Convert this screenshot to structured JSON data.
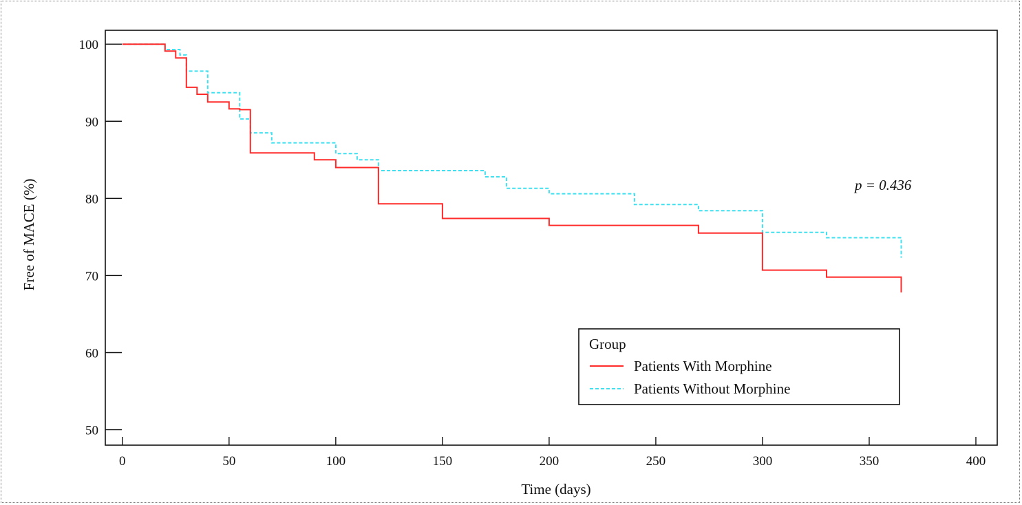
{
  "chart_data": {
    "type": "line",
    "subtype": "kaplan-meier step",
    "xlabel": "Time (days)",
    "ylabel": "Free of MACE (%)",
    "xlim": [
      -8,
      410
    ],
    "ylim": [
      48,
      101.8
    ],
    "x_ticks": [
      0,
      50,
      100,
      150,
      200,
      250,
      300,
      350,
      400
    ],
    "y_ticks": [
      50,
      60,
      70,
      80,
      90,
      100
    ],
    "grid": false,
    "annotation": "p = 0.436",
    "legend": {
      "title": "Group",
      "placement": "bottom-right",
      "entries": [
        "Patients With Morphine",
        "Patients Without Morphine"
      ]
    },
    "series": [
      {
        "name": "Patients With Morphine",
        "color": "#ff2a2a",
        "style": "solid",
        "x": [
          0,
          20,
          25,
          30,
          35,
          40,
          50,
          55,
          60,
          90,
          100,
          120,
          150,
          200,
          270,
          300,
          330,
          365,
          365
        ],
        "y": [
          100,
          99.1,
          98.2,
          94.4,
          93.5,
          92.5,
          91.6,
          91.5,
          85.9,
          85.0,
          84.0,
          79.3,
          77.4,
          76.5,
          75.5,
          70.7,
          69.8,
          69.8,
          67.8
        ]
      },
      {
        "name": "Patients Without Morphine",
        "color": "#3fe0f0",
        "style": "dashed",
        "x": [
          0,
          20,
          27,
          30,
          40,
          55,
          60,
          70,
          100,
          110,
          120,
          170,
          180,
          200,
          240,
          270,
          300,
          330,
          365,
          365
        ],
        "y": [
          100,
          99.3,
          98.6,
          96.5,
          93.7,
          90.3,
          88.5,
          87.2,
          85.8,
          85.0,
          83.6,
          82.8,
          81.3,
          80.6,
          79.2,
          78.4,
          75.6,
          74.9,
          74.9,
          72.3
        ]
      }
    ]
  }
}
